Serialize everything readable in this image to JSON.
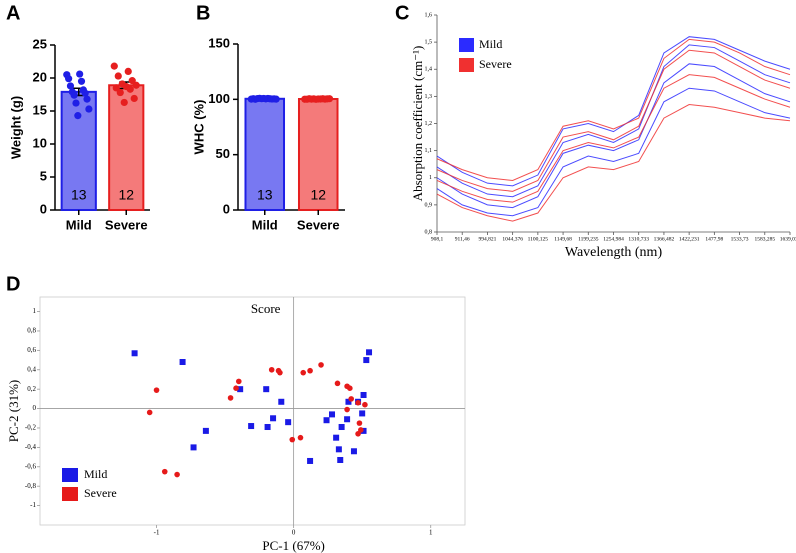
{
  "chart_data": [
    {
      "type": "bar",
      "panel": "A",
      "ylabel": "Weight (g)",
      "categories": [
        "Mild",
        "Severe"
      ],
      "values": [
        17.9,
        18.9
      ],
      "errors": [
        0.55,
        0.5
      ],
      "n": [
        13,
        12
      ],
      "points": [
        [
          20.5,
          20.6,
          19.9,
          19.5,
          18.8,
          18.2,
          17.9,
          17.7,
          17.4,
          16.8,
          16.2,
          15.3,
          14.3
        ],
        [
          21.8,
          21.0,
          20.3,
          19.6,
          19.1,
          18.9,
          18.7,
          18.5,
          18.3,
          17.8,
          16.9,
          16.3
        ]
      ],
      "colors": [
        "#1f1fe6",
        "#e61f1f"
      ],
      "fills": [
        "#7878f2",
        "#f47a7a"
      ],
      "ylim": [
        0,
        25
      ],
      "yticks": [
        0,
        5,
        10,
        15,
        20,
        25
      ]
    },
    {
      "type": "bar",
      "panel": "B",
      "ylabel": "WHC (%)",
      "categories": [
        "Mild",
        "Severe"
      ],
      "values": [
        100.5,
        100.3
      ],
      "errors": [
        0.3,
        0.3
      ],
      "n": [
        13,
        12
      ],
      "points": [
        [
          100.2,
          100.4,
          100.6,
          100.8,
          100.1,
          100.5,
          100.7,
          100.3,
          100.9,
          100.4,
          100.6,
          100.2,
          100.8
        ],
        [
          100.1,
          100.3,
          100.5,
          100.2,
          100.4,
          100.6,
          100.3,
          100.1,
          100.5,
          100.2,
          100.4,
          100.0
        ]
      ],
      "colors": [
        "#1f1fe6",
        "#e61f1f"
      ],
      "fills": [
        "#7878f2",
        "#f47a7a"
      ],
      "ylim": [
        0,
        150
      ],
      "yticks": [
        0,
        50,
        100,
        150
      ]
    },
    {
      "type": "line",
      "panel": "C",
      "xlabel": "Wavelength (nm)",
      "ylabel": "Absorption coefficient (cm⁻¹)",
      "categories": [
        "908,1",
        "911,46",
        "994,821",
        "1044,376",
        "1100,125",
        "1149,68",
        "1199,235",
        "1254,984",
        "1310,733",
        "1366,482",
        "1422,231",
        "1477,98",
        "1533,73",
        "1583,285",
        "1639,034"
      ],
      "series": [
        {
          "name": "Mild",
          "color": "#2b2bff",
          "lines": [
            [
              1.08,
              1.02,
              0.98,
              0.97,
              1.01,
              1.18,
              1.2,
              1.17,
              1.23,
              1.46,
              1.52,
              1.51,
              1.47,
              1.43,
              1.4
            ],
            [
              1.04,
              0.98,
              0.94,
              0.93,
              0.97,
              1.13,
              1.16,
              1.13,
              1.18,
              1.41,
              1.49,
              1.48,
              1.43,
              1.38,
              1.35
            ],
            [
              1.0,
              0.94,
              0.9,
              0.89,
              0.93,
              1.09,
              1.12,
              1.1,
              1.14,
              1.35,
              1.42,
              1.41,
              1.36,
              1.31,
              1.28
            ],
            [
              0.96,
              0.9,
              0.87,
              0.86,
              0.89,
              1.04,
              1.08,
              1.06,
              1.09,
              1.28,
              1.33,
              1.32,
              1.28,
              1.24,
              1.22
            ]
          ]
        },
        {
          "name": "Severe",
          "color": "#f03030",
          "lines": [
            [
              1.07,
              1.03,
              1.0,
              0.99,
              1.03,
              1.19,
              1.21,
              1.18,
              1.22,
              1.44,
              1.51,
              1.5,
              1.46,
              1.41,
              1.38
            ],
            [
              1.03,
              0.99,
              0.96,
              0.95,
              0.99,
              1.15,
              1.17,
              1.14,
              1.19,
              1.4,
              1.47,
              1.46,
              1.41,
              1.36,
              1.33
            ],
            [
              0.99,
              0.95,
              0.92,
              0.91,
              0.95,
              1.1,
              1.13,
              1.11,
              1.15,
              1.33,
              1.38,
              1.37,
              1.33,
              1.29,
              1.26
            ],
            [
              0.94,
              0.89,
              0.86,
              0.84,
              0.87,
              1.0,
              1.04,
              1.03,
              1.06,
              1.22,
              1.27,
              1.26,
              1.24,
              1.22,
              1.21
            ]
          ]
        }
      ],
      "ylim": [
        0.8,
        1.6
      ],
      "yticks": [
        {
          "value": 0.8,
          "label": "0,8"
        },
        {
          "value": 0.9,
          "label": "0,9"
        },
        1,
        {
          "value": 1.1,
          "label": "1,1"
        },
        {
          "value": 1.2,
          "label": "1,2"
        },
        {
          "value": 1.3,
          "label": "1,3"
        },
        {
          "value": 1.4,
          "label": "1,4"
        },
        {
          "value": 1.5,
          "label": "1,5"
        },
        {
          "value": 1.6,
          "label": "1,6"
        }
      ],
      "legend": "upper left"
    },
    {
      "type": "scatter",
      "panel": "D",
      "title": "Score",
      "xlabel": "PC-1 (67%)",
      "ylabel": "PC-2 (31%)",
      "series": [
        {
          "name": "Mild",
          "color": "#1a1ae6",
          "marker": "square",
          "x": [
            -1.16,
            -0.81,
            -0.39,
            -0.2,
            -0.15,
            -0.09,
            -0.31,
            -0.19,
            -0.04,
            -0.64,
            -0.73,
            0.12,
            0.24,
            0.28,
            0.35,
            0.39,
            0.31,
            0.33,
            0.34,
            0.44,
            0.4,
            0.47,
            0.51,
            0.51,
            0.53,
            0.55,
            0.5
          ],
          "y": [
            0.57,
            0.48,
            0.2,
            0.2,
            -0.1,
            0.07,
            -0.18,
            -0.19,
            -0.14,
            -0.23,
            -0.4,
            -0.54,
            -0.12,
            -0.06,
            -0.19,
            -0.11,
            -0.3,
            -0.42,
            -0.53,
            -0.44,
            0.07,
            0.07,
            0.14,
            -0.23,
            0.5,
            0.58,
            -0.05
          ]
        },
        {
          "name": "Severe",
          "color": "#e61a1a",
          "marker": "circle",
          "x": [
            -1.0,
            -1.05,
            -0.94,
            -0.85,
            -0.46,
            -0.42,
            -0.4,
            -0.16,
            -0.11,
            -0.1,
            -0.01,
            0.05,
            0.07,
            0.12,
            0.2,
            0.32,
            0.39,
            0.41,
            0.42,
            0.47,
            0.52,
            0.48,
            0.47,
            0.49,
            0.39
          ],
          "y": [
            0.19,
            -0.04,
            -0.65,
            -0.68,
            0.11,
            0.21,
            0.28,
            0.4,
            0.39,
            0.37,
            -0.32,
            -0.3,
            0.37,
            0.39,
            0.45,
            0.26,
            0.23,
            0.21,
            0.1,
            0.06,
            0.04,
            -0.15,
            -0.26,
            -0.22,
            -0.01
          ]
        }
      ],
      "xlim": [
        -1.85,
        1.25
      ],
      "xticks": [
        -1,
        0,
        1
      ],
      "ylim": [
        -1.2,
        1.15
      ],
      "yticks": [
        -1,
        {
          "value": -0.8,
          "label": "-0,8"
        },
        {
          "value": -0.6,
          "label": "-0,6"
        },
        {
          "value": -0.4,
          "label": "-0,4"
        },
        {
          "value": -0.2,
          "label": "-0,2"
        },
        0,
        {
          "value": 0.2,
          "label": "0,2"
        },
        {
          "value": 0.4,
          "label": "0,4"
        },
        {
          "value": 0.6,
          "label": "0,6"
        },
        {
          "value": 0.8,
          "label": "0,8"
        },
        1
      ],
      "legend": "lower left"
    }
  ]
}
